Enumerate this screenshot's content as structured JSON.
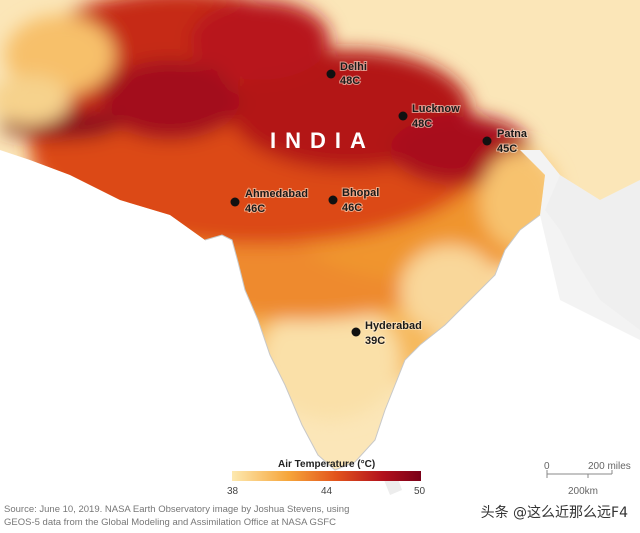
{
  "map": {
    "country_label": "INDIA",
    "cities": [
      {
        "name": "Delhi",
        "temp": "48C"
      },
      {
        "name": "Lucknow",
        "temp": "48C"
      },
      {
        "name": "Patna",
        "temp": "45C"
      },
      {
        "name": "Ahmedabad",
        "temp": "46C"
      },
      {
        "name": "Bhopal",
        "temp": "46C"
      },
      {
        "name": "Hyderabad",
        "temp": "39C"
      }
    ]
  },
  "legend": {
    "title": "Air Temperature (°C)",
    "ticks": [
      "38",
      "44",
      "50"
    ],
    "colors": [
      "#fde9b0",
      "#f6a53a",
      "#e2541c",
      "#b2101c",
      "#7a0018"
    ]
  },
  "scale": {
    "miles": "200 miles",
    "zero": "0",
    "km": "200km"
  },
  "source": {
    "line1": "Source: June 10, 2019. NASA Earth Observatory image by Joshua Stevens, using",
    "line2": "GEOS-5 data from the Global Modeling and Assimilation Office at NASA GSFC"
  },
  "watermark": "头条 @这么近那么远F4"
}
